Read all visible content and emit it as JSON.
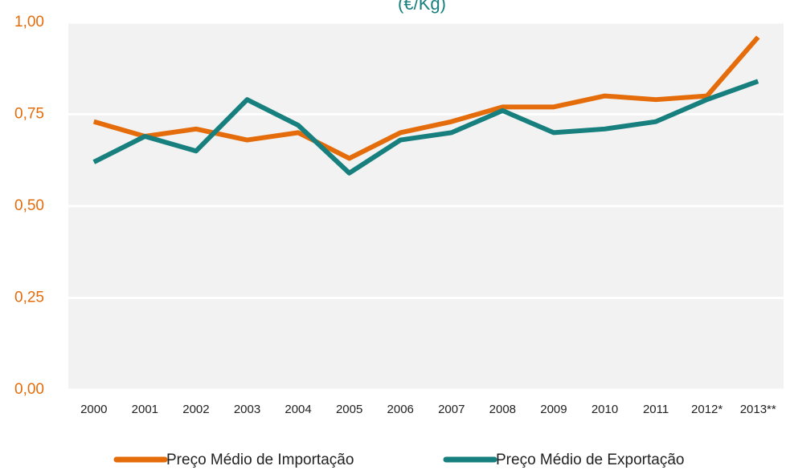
{
  "chart_data": {
    "type": "line",
    "title": "(€/Kg)",
    "categories": [
      "2000",
      "2001",
      "2002",
      "2003",
      "2004",
      "2005",
      "2006",
      "2007",
      "2008",
      "2009",
      "2010",
      "2011",
      "2012*",
      "2013**"
    ],
    "series": [
      {
        "name": "Preço Médio de Importação",
        "color": "#e46c0a",
        "values": [
          0.73,
          0.69,
          0.71,
          0.68,
          0.7,
          0.63,
          0.7,
          0.73,
          0.77,
          0.77,
          0.8,
          0.79,
          0.8,
          0.96
        ]
      },
      {
        "name": "Preço Médio de Exportação",
        "color": "#17807e",
        "values": [
          0.62,
          0.69,
          0.65,
          0.79,
          0.72,
          0.59,
          0.68,
          0.7,
          0.76,
          0.7,
          0.71,
          0.73,
          0.79,
          0.84
        ]
      }
    ],
    "ylim": [
      0,
      1
    ],
    "yticks": [
      {
        "value": 0,
        "label": "0,00"
      },
      {
        "value": 0.25,
        "label": "0,25"
      },
      {
        "value": 0.5,
        "label": "0,50"
      },
      {
        "value": 0.75,
        "label": "0,75"
      },
      {
        "value": 1,
        "label": "1,00"
      }
    ],
    "grid": true
  }
}
